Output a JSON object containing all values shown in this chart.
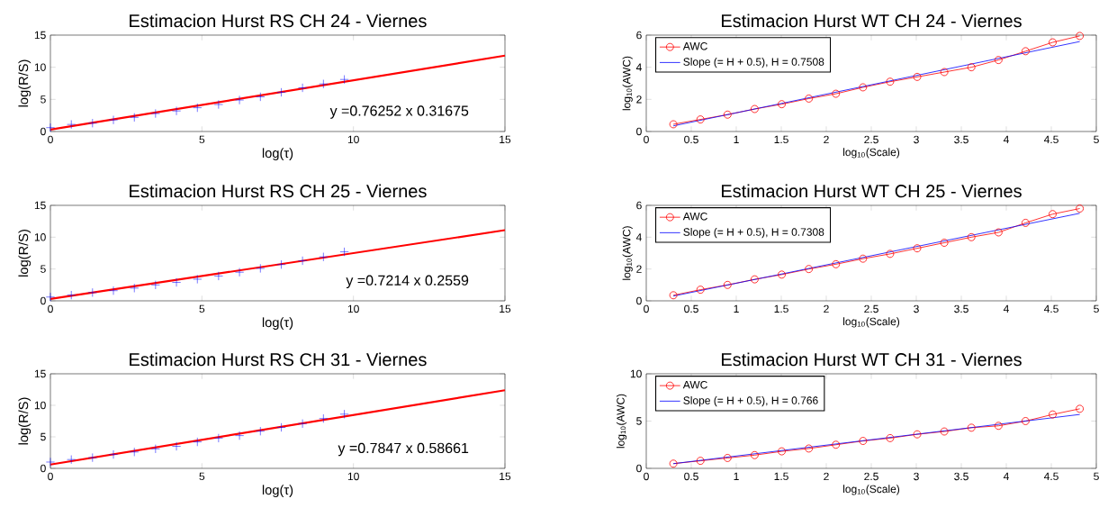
{
  "chart_data": [
    {
      "type": "scatter",
      "title": "Estimacion Hurst RS CH 24 - Viernes",
      "xlabel": "log(τ)",
      "ylabel": "log(R/S)",
      "xlim": [
        0,
        15
      ],
      "ylim": [
        0,
        15
      ],
      "xticks": [
        0,
        5,
        10,
        15
      ],
      "yticks": [
        0,
        5,
        10,
        15
      ],
      "annotations": [
        "y =0.76252 x 0.31675"
      ],
      "series": [
        {
          "color": "#0000ff",
          "marker": "cross",
          "x": [
            0,
            0.69,
            1.39,
            2.08,
            2.77,
            3.47,
            4.16,
            4.85,
            5.55,
            6.24,
            6.93,
            7.62,
            8.32,
            9.01,
            9.7
          ],
          "values": [
            0.6,
            1.1,
            1.3,
            1.8,
            2.2,
            2.8,
            3.2,
            3.7,
            4.2,
            4.9,
            5.4,
            6.1,
            6.8,
            7.4,
            8.1
          ]
        },
        {
          "type": "line",
          "color": "#ff0000",
          "marker": "none",
          "x": [
            0,
            15
          ],
          "values": [
            0.3,
            11.8
          ]
        }
      ]
    },
    {
      "type": "line",
      "title": "Estimacion Hurst WT CH 24 - Viernes",
      "xlabel": "log$_{10}$(Scale)",
      "ylabel": "log$_{10}$(AWC)",
      "xlim": [
        0,
        5
      ],
      "ylim": [
        0,
        6
      ],
      "xticks": [
        0,
        0.5,
        1,
        1.5,
        2,
        2.5,
        3,
        3.5,
        4,
        4.5,
        5
      ],
      "yticks": [
        0,
        2,
        4,
        6
      ],
      "legend": "top left",
      "series": [
        {
          "name": "AWC",
          "color": "#ff0000",
          "marker": "circle",
          "x": [
            0.301,
            0.602,
            0.903,
            1.204,
            1.505,
            1.806,
            2.107,
            2.408,
            2.709,
            3.01,
            3.311,
            3.612,
            3.913,
            4.214,
            4.515,
            4.816
          ],
          "values": [
            0.45,
            0.75,
            1.05,
            1.4,
            1.7,
            2.05,
            2.35,
            2.75,
            3.1,
            3.4,
            3.7,
            4.0,
            4.45,
            5.0,
            5.55,
            5.95
          ]
        },
        {
          "name": "Slope (= H + 0.5), H = 0.7508",
          "color": "#0000ff",
          "marker": "none",
          "x": [
            0.301,
            4.816
          ],
          "values": [
            0.35,
            5.6
          ]
        }
      ]
    },
    {
      "type": "scatter",
      "title": "Estimacion Hurst RS CH 25 - Viernes",
      "xlabel": "log(τ)",
      "ylabel": "log(R/S)",
      "xlim": [
        0,
        15
      ],
      "ylim": [
        0,
        15
      ],
      "xticks": [
        0,
        5,
        10,
        15
      ],
      "yticks": [
        0,
        5,
        10,
        15
      ],
      "annotations": [
        "y =0.7214 x 0.2559"
      ],
      "series": [
        {
          "color": "#0000ff",
          "marker": "cross",
          "x": [
            0,
            0.69,
            1.39,
            2.08,
            2.77,
            3.47,
            4.16,
            4.85,
            5.55,
            6.24,
            6.93,
            7.62,
            8.32,
            9.01,
            9.7
          ],
          "values": [
            0.6,
            0.9,
            1.3,
            1.6,
            2.0,
            2.5,
            2.9,
            3.4,
            3.9,
            4.5,
            5.1,
            5.7,
            6.3,
            6.9,
            7.7
          ]
        },
        {
          "type": "line",
          "color": "#ff0000",
          "marker": "none",
          "x": [
            0,
            15
          ],
          "values": [
            0.3,
            11.1
          ]
        }
      ]
    },
    {
      "type": "line",
      "title": "Estimacion Hurst WT CH 25 - Viernes",
      "xlabel": "log$_{10}$(Scale)",
      "ylabel": "log$_{10}$(AWC)",
      "xlim": [
        0,
        5
      ],
      "ylim": [
        0,
        6
      ],
      "xticks": [
        0,
        0.5,
        1,
        1.5,
        2,
        2.5,
        3,
        3.5,
        4,
        4.5,
        5
      ],
      "yticks": [
        0,
        2,
        4,
        6
      ],
      "legend": "top left",
      "series": [
        {
          "name": "AWC",
          "color": "#ff0000",
          "marker": "circle",
          "x": [
            0.301,
            0.602,
            0.903,
            1.204,
            1.505,
            1.806,
            2.107,
            2.408,
            2.709,
            3.01,
            3.311,
            3.612,
            3.913,
            4.214,
            4.515,
            4.816
          ],
          "values": [
            0.35,
            0.7,
            1.0,
            1.35,
            1.65,
            2.0,
            2.3,
            2.65,
            2.95,
            3.3,
            3.65,
            4.0,
            4.3,
            4.9,
            5.45,
            5.8
          ]
        },
        {
          "name": "Slope (= H + 0.5), H = 0.7308",
          "color": "#0000ff",
          "marker": "none",
          "x": [
            0.301,
            4.816
          ],
          "values": [
            0.3,
            5.5
          ]
        }
      ]
    },
    {
      "type": "scatter",
      "title": "Estimacion Hurst RS CH 31 - Viernes",
      "xlabel": "log(τ)",
      "ylabel": "log(R/S)",
      "xlim": [
        0,
        15
      ],
      "ylim": [
        0,
        15
      ],
      "xticks": [
        0,
        5,
        10,
        15
      ],
      "yticks": [
        0,
        5,
        10,
        15
      ],
      "annotations": [
        "y =0.7847 x 0.58661"
      ],
      "series": [
        {
          "color": "#0000ff",
          "marker": "cross",
          "x": [
            0,
            0.69,
            1.39,
            2.08,
            2.77,
            3.47,
            4.16,
            4.85,
            5.55,
            6.24,
            6.93,
            7.62,
            8.32,
            9.01,
            9.7
          ],
          "values": [
            1.0,
            1.4,
            1.7,
            2.2,
            2.6,
            3.1,
            3.5,
            4.2,
            4.8,
            5.2,
            5.9,
            6.5,
            7.1,
            7.9,
            8.6
          ]
        },
        {
          "type": "line",
          "color": "#ff0000",
          "marker": "none",
          "x": [
            0,
            15
          ],
          "values": [
            0.6,
            12.4
          ]
        }
      ]
    },
    {
      "type": "line",
      "title": "Estimacion Hurst WT CH 31 - Viernes",
      "xlabel": "log$_{10}$(Scale)",
      "ylabel": "log$_{10}$(AWC)",
      "xlim": [
        0,
        5
      ],
      "ylim": [
        0,
        10
      ],
      "xticks": [
        0,
        0.5,
        1,
        1.5,
        2,
        2.5,
        3,
        3.5,
        4,
        4.5,
        5
      ],
      "yticks": [
        0,
        5,
        10
      ],
      "legend": "top left",
      "series": [
        {
          "name": "AWC",
          "color": "#ff0000",
          "marker": "circle",
          "x": [
            0.301,
            0.602,
            0.903,
            1.204,
            1.505,
            1.806,
            2.107,
            2.408,
            2.709,
            3.01,
            3.311,
            3.612,
            3.913,
            4.214,
            4.515,
            4.816
          ],
          "values": [
            0.5,
            0.8,
            1.1,
            1.4,
            1.8,
            2.1,
            2.5,
            2.9,
            3.2,
            3.6,
            3.9,
            4.3,
            4.5,
            5.0,
            5.7,
            6.3
          ]
        },
        {
          "name": "Slope (= H + 0.5), H = 0.766",
          "color": "#0000ff",
          "marker": "none",
          "x": [
            0.301,
            4.816
          ],
          "values": [
            0.5,
            5.7
          ]
        }
      ]
    }
  ]
}
